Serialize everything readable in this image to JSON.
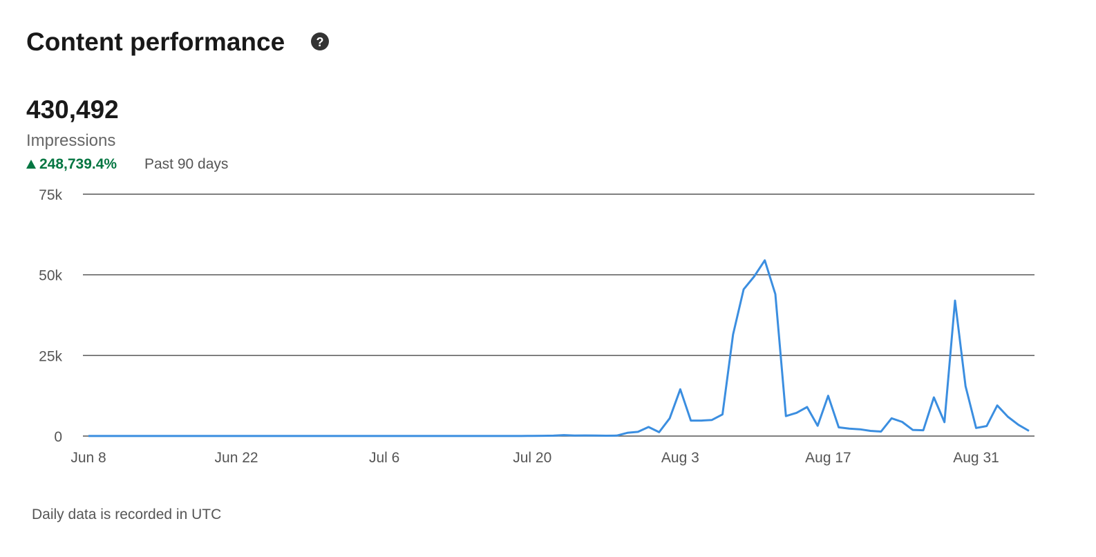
{
  "header": {
    "title": "Content performance",
    "total": "430,492",
    "metric": "Impressions",
    "change": "248,739.4%",
    "period": "Past 90 days"
  },
  "footnote": "Daily data is recorded in UTC",
  "chart_data": {
    "type": "line",
    "color": "#3b8ee0",
    "grid": true,
    "categories": [
      "Jun 8",
      null,
      null,
      null,
      null,
      null,
      null,
      null,
      null,
      null,
      null,
      null,
      null,
      null,
      "Jun 22",
      null,
      null,
      null,
      null,
      null,
      null,
      null,
      null,
      null,
      null,
      null,
      null,
      null,
      "Jul 6",
      null,
      null,
      null,
      null,
      null,
      null,
      null,
      null,
      null,
      null,
      null,
      null,
      null,
      "Jul 20",
      null,
      null,
      null,
      null,
      null,
      null,
      null,
      null,
      null,
      null,
      null,
      null,
      null,
      "Aug 3",
      null,
      null,
      null,
      null,
      null,
      null,
      null,
      null,
      null,
      null,
      null,
      null,
      null,
      "Aug 17",
      null,
      null,
      null,
      null,
      null,
      null,
      null,
      null,
      null,
      null,
      null,
      null,
      null,
      "Aug 31",
      null,
      null,
      null,
      null,
      null
    ],
    "values": [
      20,
      20,
      20,
      20,
      20,
      20,
      20,
      20,
      20,
      20,
      20,
      20,
      20,
      20,
      20,
      20,
      20,
      20,
      20,
      20,
      20,
      20,
      20,
      20,
      20,
      20,
      20,
      20,
      20,
      20,
      20,
      20,
      20,
      20,
      20,
      20,
      20,
      20,
      20,
      20,
      20,
      20,
      60,
      80,
      120,
      300,
      150,
      200,
      180,
      100,
      150,
      1000,
      1300,
      2800,
      1200,
      5500,
      14500,
      4800,
      4800,
      5000,
      6700,
      31500,
      45500,
      49500,
      54500,
      44000,
      6200,
      7200,
      9000,
      3200,
      12500,
      2700,
      2300,
      2100,
      1600,
      1400,
      5500,
      4400,
      1900,
      1800,
      12000,
      4300,
      42000,
      15500,
      2500,
      3100,
      9500,
      6000,
      3500,
      1600
    ],
    "ylim": [
      0,
      75000
    ],
    "yticks": [
      0,
      {
        "value": 25000,
        "label": "25k"
      },
      {
        "value": 50000,
        "label": "50k"
      },
      {
        "value": 75000,
        "label": "75k"
      }
    ]
  }
}
